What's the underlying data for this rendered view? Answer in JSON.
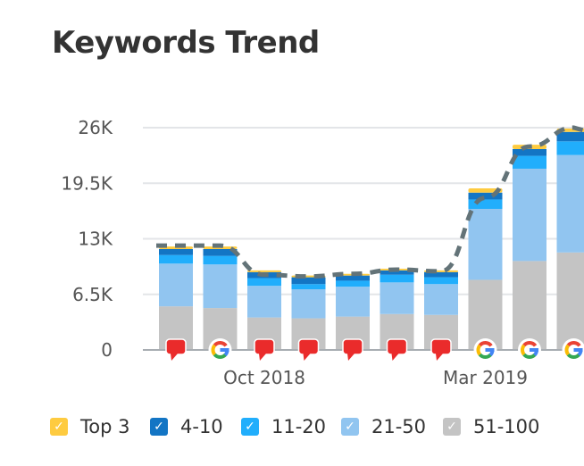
{
  "title": "Keywords Trend",
  "chart_data": {
    "type": "bar",
    "stacked": true,
    "title": "Keywords Trend",
    "ylim": [
      0,
      26000
    ],
    "yticks": [
      0,
      6500,
      13000,
      19500,
      26000
    ],
    "ytick_labels": [
      "0",
      "6.5K",
      "13K",
      "19.5K",
      "26K"
    ],
    "xtick_labels": [
      {
        "index": 2,
        "label": "Oct 2018"
      },
      {
        "index": 7,
        "label": "Mar 2019"
      }
    ],
    "grid": true,
    "legend_position": "bottom",
    "series": [
      {
        "name": "51-100",
        "color": "#c4c4c4",
        "values": [
          5100,
          4900,
          3800,
          3700,
          3900,
          4200,
          4100,
          8200,
          10400,
          11400
        ]
      },
      {
        "name": "21-50",
        "color": "#91c5f0",
        "values": [
          5000,
          5100,
          3700,
          3400,
          3500,
          3700,
          3600,
          8300,
          10800,
          11400
        ]
      },
      {
        "name": "11-20",
        "color": "#21aefc",
        "values": [
          1000,
          1000,
          900,
          600,
          700,
          900,
          800,
          1100,
          1500,
          1600
        ]
      },
      {
        "name": "4-10",
        "color": "#1375c4",
        "values": [
          700,
          800,
          700,
          800,
          600,
          500,
          600,
          800,
          800,
          1100
        ]
      },
      {
        "name": "Top 3",
        "color": "#fecb40",
        "values": [
          300,
          300,
          200,
          200,
          200,
          200,
          200,
          500,
          500,
          400
        ]
      }
    ],
    "trend_line": {
      "color": "#637378",
      "style": "dashed",
      "values": [
        12200,
        12200,
        8800,
        8600,
        8900,
        9400,
        9200,
        17800,
        23800,
        26000
      ]
    },
    "markers": [
      "note",
      "google",
      "note",
      "note",
      "note",
      "note",
      "note",
      "google",
      "google",
      "google"
    ]
  },
  "legend": [
    {
      "label": "Top 3",
      "color": "#fecb40"
    },
    {
      "label": "4-10",
      "color": "#1375c4"
    },
    {
      "label": "11-20",
      "color": "#21aefc"
    },
    {
      "label": "21-50",
      "color": "#91c5f0"
    },
    {
      "label": "51-100",
      "color": "#c4c4c4"
    }
  ]
}
